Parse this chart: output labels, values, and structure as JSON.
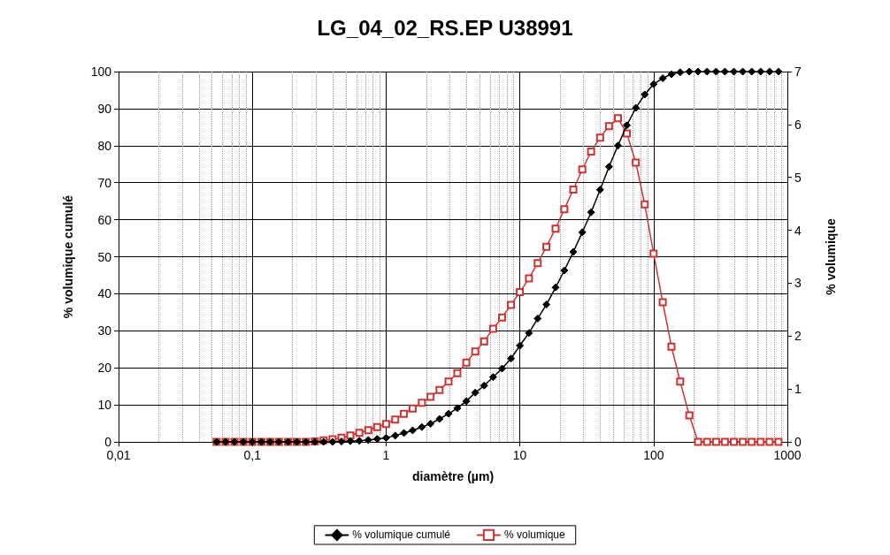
{
  "chart_data": {
    "type": "line",
    "title": "LG_04_02_RS.EP U38991",
    "xlabel": "diamètre (µm)",
    "ylabel": "% volumique cumulé",
    "y2label": "% volumique",
    "log": "x",
    "grid": true,
    "legend": "bottom",
    "x": [
      0.0541,
      0.0631,
      0.0736,
      0.0858,
      0.1,
      0.117,
      0.136,
      0.158,
      0.185,
      0.215,
      0.251,
      0.293,
      0.341,
      0.398,
      0.464,
      0.541,
      0.631,
      0.736,
      0.858,
      1,
      1.17,
      1.36,
      1.58,
      1.85,
      2.15,
      2.51,
      2.93,
      3.41,
      3.98,
      4.64,
      5.41,
      6.31,
      7.36,
      8.58,
      10,
      11.7,
      13.6,
      15.8,
      18.5,
      21.5,
      25.1,
      29.3,
      34.1,
      39.8,
      46.4,
      54.1,
      63.1,
      73.6,
      85.8,
      100,
      117,
      136,
      158,
      185,
      215,
      251,
      293,
      341,
      398,
      464,
      541,
      631,
      736,
      858
    ],
    "xlim": [
      0.01,
      1000
    ],
    "xticks": [
      {
        "value": 0.01,
        "label": "0,01"
      },
      {
        "value": 0.1,
        "label": "0,1"
      },
      1,
      10,
      100,
      1000
    ],
    "ylim": [
      0,
      100
    ],
    "yticks": [
      0,
      10,
      20,
      30,
      40,
      50,
      60,
      70,
      80,
      90,
      100
    ],
    "y2lim": [
      0,
      7
    ],
    "y2ticks": [
      0,
      1,
      2,
      3,
      4,
      5,
      6,
      7
    ],
    "series": [
      {
        "name": "% volumique cumulé",
        "color": "#000000",
        "marker": "diamond",
        "values": [
          0,
          0,
          0,
          0,
          0,
          0,
          0,
          0,
          0,
          0,
          0,
          0,
          0,
          0,
          0.1,
          0.2,
          0.3,
          0.5,
          0.8,
          1.1,
          1.7,
          2.4,
          3.1,
          4.0,
          4.9,
          6.2,
          7.6,
          9.1,
          11.0,
          13.3,
          15.2,
          17.5,
          19.8,
          22.5,
          26.0,
          29.4,
          33.3,
          37.1,
          41.7,
          46.3,
          51.3,
          56.6,
          62.0,
          68.1,
          74.3,
          80.0,
          85.5,
          90.2,
          93.8,
          96.6,
          98.2,
          99.3,
          99.8,
          100,
          100,
          100,
          100,
          100,
          100,
          100,
          100,
          100,
          100,
          100
        ]
      },
      {
        "name": "% volumique",
        "color": "#cc3333",
        "marker": "square",
        "axis": "y2",
        "values": [
          0,
          0,
          0,
          0,
          0,
          0,
          0,
          0,
          0,
          0,
          0,
          0.01,
          0.03,
          0.05,
          0.08,
          0.12,
          0.17,
          0.22,
          0.28,
          0.34,
          0.42,
          0.53,
          0.63,
          0.74,
          0.85,
          0.98,
          1.14,
          1.3,
          1.5,
          1.71,
          1.9,
          2.14,
          2.35,
          2.59,
          2.83,
          3.09,
          3.38,
          3.69,
          4.03,
          4.4,
          4.77,
          5.15,
          5.49,
          5.75,
          5.97,
          6.12,
          5.83,
          5.28,
          4.49,
          3.56,
          2.64,
          1.8,
          1.14,
          0.5,
          0,
          0,
          0,
          0,
          0,
          0,
          0,
          0,
          0,
          0
        ]
      }
    ]
  }
}
